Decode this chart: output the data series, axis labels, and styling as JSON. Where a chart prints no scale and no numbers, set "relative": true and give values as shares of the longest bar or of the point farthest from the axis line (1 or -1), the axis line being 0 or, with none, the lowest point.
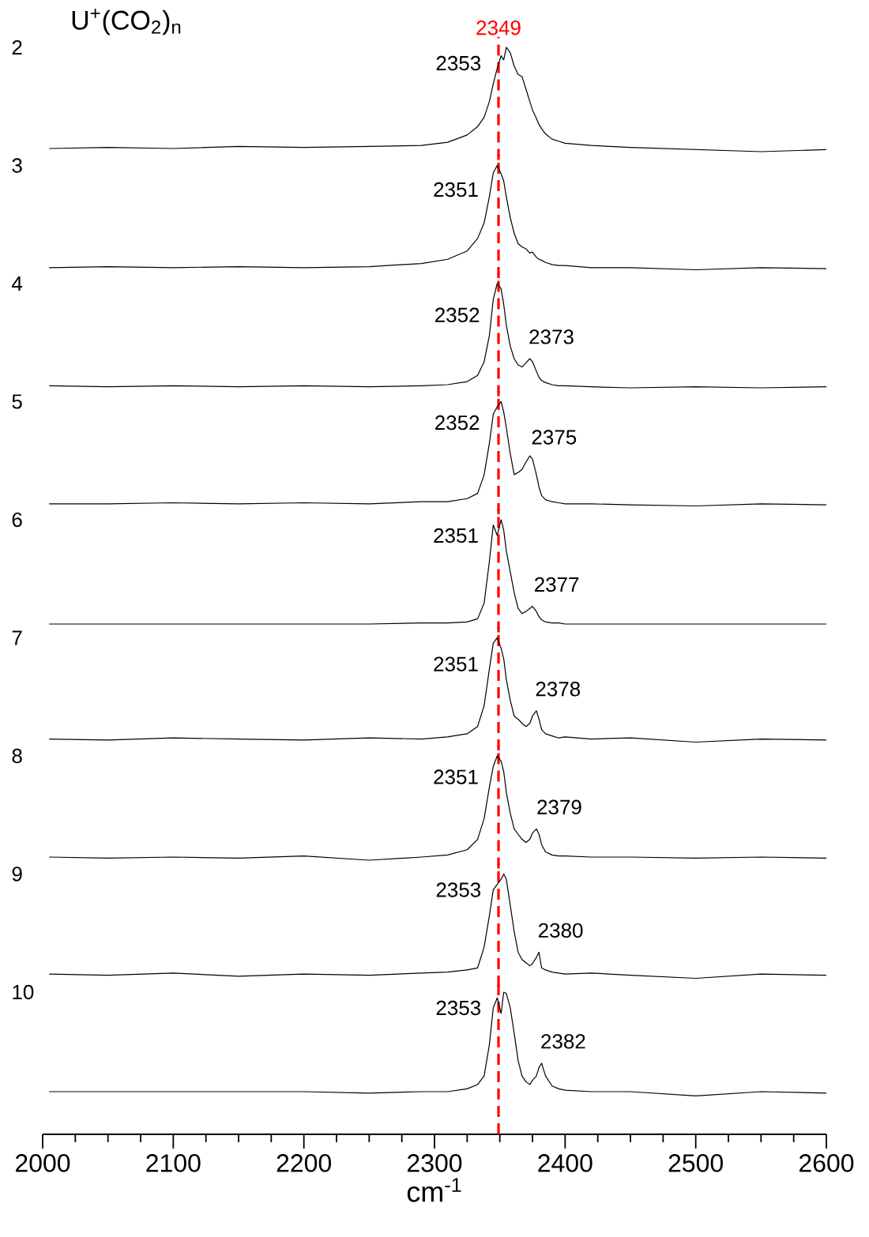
{
  "chart_data": [
    {
      "type": "line",
      "relative": true,
      "title": "U$^{+}$(CO$_{2}$)$_{n}$",
      "xlim": [
        2000,
        2600
      ],
      "tick_labels": false,
      "x": [
        2005,
        2050,
        2100,
        2150,
        2200,
        2250,
        2290,
        2310,
        2325,
        2333,
        2338,
        2342,
        2345,
        2348,
        2351,
        2353,
        2355,
        2358,
        2361,
        2364,
        2367,
        2370,
        2373,
        2375,
        2378,
        2380,
        2382,
        2385,
        2390,
        2395,
        2400,
        2420,
        2450,
        2500,
        2550,
        2600
      ],
      "series": [
        {
          "name": "2",
          "color": "#000000",
          "values": [
            0.03,
            0.04,
            0.03,
            0.05,
            0.04,
            0.05,
            0.06,
            0.09,
            0.16,
            0.24,
            0.33,
            0.48,
            0.65,
            0.8,
            0.92,
            0.88,
            1.0,
            0.95,
            0.82,
            0.74,
            0.72,
            0.6,
            0.48,
            0.4,
            0.32,
            0.26,
            0.22,
            0.17,
            0.12,
            0.1,
            0.08,
            0.06,
            0.04,
            0.02,
            0.0,
            0.02
          ]
        }
      ],
      "ref_lines": [
        {
          "axis": "x",
          "value": 2349,
          "label": "2349",
          "color": "#ff0000",
          "line_style": "dashed"
        }
      ],
      "annotations": [
        {
          "text": "2353",
          "x": 2353,
          "y": 1.0
        }
      ]
    },
    {
      "type": "line",
      "relative": true,
      "xlim": [
        2000,
        2600
      ],
      "tick_labels": false,
      "x": [
        2005,
        2050,
        2100,
        2150,
        2200,
        2250,
        2290,
        2310,
        2325,
        2333,
        2338,
        2342,
        2345,
        2348,
        2351,
        2353,
        2355,
        2358,
        2361,
        2364,
        2367,
        2370,
        2373,
        2375,
        2378,
        2380,
        2382,
        2385,
        2390,
        2395,
        2400,
        2420,
        2450,
        2500,
        2550,
        2600
      ],
      "series": [
        {
          "name": "3",
          "color": "#000000",
          "values": [
            0.02,
            0.03,
            0.02,
            0.03,
            0.02,
            0.03,
            0.06,
            0.1,
            0.18,
            0.3,
            0.45,
            0.7,
            0.93,
            1.0,
            0.92,
            0.85,
            0.7,
            0.5,
            0.35,
            0.25,
            0.22,
            0.2,
            0.16,
            0.17,
            0.12,
            0.1,
            0.09,
            0.07,
            0.05,
            0.04,
            0.04,
            0.02,
            0.02,
            0.0,
            0.02,
            0.01
          ]
        }
      ],
      "ref_lines": [
        {
          "axis": "x",
          "value": 2349,
          "color": "#ff0000",
          "line_style": "dashed"
        }
      ],
      "annotations": [
        {
          "text": "2351",
          "x": 2351,
          "y": 0.92
        }
      ]
    },
    {
      "type": "line",
      "relative": true,
      "xlim": [
        2000,
        2600
      ],
      "tick_labels": false,
      "x": [
        2005,
        2050,
        2100,
        2150,
        2200,
        2250,
        2290,
        2310,
        2325,
        2333,
        2338,
        2342,
        2345,
        2348,
        2351,
        2353,
        2355,
        2358,
        2361,
        2364,
        2367,
        2370,
        2373,
        2375,
        2378,
        2380,
        2382,
        2385,
        2390,
        2395,
        2400,
        2420,
        2450,
        2500,
        2550,
        2600
      ],
      "series": [
        {
          "name": "4",
          "color": "#000000",
          "values": [
            0.02,
            0.01,
            0.02,
            0.01,
            0.02,
            0.01,
            0.02,
            0.03,
            0.06,
            0.12,
            0.25,
            0.5,
            0.85,
            1.0,
            0.95,
            0.8,
            0.6,
            0.4,
            0.28,
            0.22,
            0.2,
            0.24,
            0.28,
            0.25,
            0.16,
            0.1,
            0.07,
            0.05,
            0.03,
            0.02,
            0.02,
            0.01,
            0.0,
            0.01,
            0.0,
            0.01
          ]
        }
      ],
      "ref_lines": [
        {
          "axis": "x",
          "value": 2349,
          "color": "#ff0000",
          "line_style": "dashed"
        }
      ],
      "annotations": [
        {
          "text": "2352",
          "x": 2352,
          "y": 0.85
        },
        {
          "text": "2373",
          "x": 2373,
          "y": 0.28
        }
      ]
    },
    {
      "type": "line",
      "relative": true,
      "xlim": [
        2000,
        2600
      ],
      "tick_labels": false,
      "x": [
        2005,
        2050,
        2100,
        2150,
        2200,
        2250,
        2290,
        2310,
        2325,
        2333,
        2338,
        2342,
        2345,
        2348,
        2351,
        2353,
        2355,
        2358,
        2361,
        2364,
        2367,
        2370,
        2373,
        2375,
        2378,
        2380,
        2382,
        2385,
        2390,
        2395,
        2400,
        2420,
        2450,
        2500,
        2550,
        2600
      ],
      "series": [
        {
          "name": "5",
          "color": "#000000",
          "values": [
            0.02,
            0.02,
            0.03,
            0.02,
            0.03,
            0.02,
            0.04,
            0.04,
            0.07,
            0.12,
            0.3,
            0.6,
            0.88,
            0.95,
            1.0,
            0.9,
            0.75,
            0.5,
            0.3,
            0.32,
            0.35,
            0.42,
            0.48,
            0.45,
            0.3,
            0.18,
            0.1,
            0.06,
            0.04,
            0.03,
            0.02,
            0.02,
            0.01,
            0.0,
            0.02,
            0.01
          ]
        }
      ],
      "ref_lines": [
        {
          "axis": "x",
          "value": 2349,
          "color": "#ff0000",
          "line_style": "dashed"
        }
      ],
      "annotations": [
        {
          "text": "2352",
          "x": 2352,
          "y": 0.95
        },
        {
          "text": "2375",
          "x": 2375,
          "y": 0.45
        }
      ]
    },
    {
      "type": "line",
      "relative": true,
      "xlim": [
        2000,
        2600
      ],
      "tick_labels": false,
      "x": [
        2005,
        2050,
        2100,
        2150,
        2200,
        2250,
        2290,
        2310,
        2325,
        2333,
        2338,
        2342,
        2345,
        2348,
        2351,
        2353,
        2355,
        2358,
        2361,
        2364,
        2367,
        2370,
        2373,
        2375,
        2378,
        2380,
        2382,
        2385,
        2390,
        2395,
        2400,
        2420,
        2450,
        2500,
        2550,
        2600
      ],
      "series": [
        {
          "name": "6",
          "color": "#000000",
          "values": [
            0,
            0,
            0,
            0,
            0,
            0,
            0.01,
            0.01,
            0.02,
            0.05,
            0.2,
            0.6,
            0.95,
            0.85,
            1.0,
            0.9,
            0.7,
            0.5,
            0.3,
            0.15,
            0.1,
            0.12,
            0.15,
            0.17,
            0.12,
            0.07,
            0.04,
            0.02,
            0.01,
            0.01,
            0,
            0,
            0,
            0,
            0,
            0
          ]
        }
      ],
      "ref_lines": [
        {
          "axis": "x",
          "value": 2349,
          "color": "#ff0000",
          "line_style": "dashed"
        }
      ],
      "annotations": [
        {
          "text": "2351",
          "x": 2351,
          "y": 1.0
        },
        {
          "text": "2377",
          "x": 2377,
          "y": 0.17
        }
      ]
    },
    {
      "type": "line",
      "relative": true,
      "xlim": [
        2000,
        2600
      ],
      "tick_labels": false,
      "x": [
        2005,
        2050,
        2100,
        2150,
        2200,
        2250,
        2290,
        2310,
        2325,
        2333,
        2338,
        2342,
        2345,
        2348,
        2351,
        2353,
        2355,
        2358,
        2361,
        2364,
        2367,
        2370,
        2373,
        2375,
        2378,
        2380,
        2382,
        2385,
        2390,
        2395,
        2400,
        2420,
        2450,
        2500,
        2550,
        2600
      ],
      "series": [
        {
          "name": "7",
          "color": "#000000",
          "values": [
            0.03,
            0.02,
            0.04,
            0.03,
            0.02,
            0.04,
            0.03,
            0.05,
            0.08,
            0.15,
            0.35,
            0.7,
            0.95,
            1.0,
            0.9,
            0.8,
            0.6,
            0.4,
            0.25,
            0.22,
            0.18,
            0.15,
            0.18,
            0.25,
            0.3,
            0.22,
            0.12,
            0.08,
            0.06,
            0.04,
            0.05,
            0.03,
            0.04,
            0.0,
            0.03,
            0.02
          ]
        }
      ],
      "ref_lines": [
        {
          "axis": "x",
          "value": 2349,
          "color": "#ff0000",
          "line_style": "dashed"
        }
      ],
      "annotations": [
        {
          "text": "2351",
          "x": 2351,
          "y": 0.9
        },
        {
          "text": "2378",
          "x": 2378,
          "y": 0.3
        }
      ]
    },
    {
      "type": "line",
      "relative": true,
      "xlim": [
        2000,
        2600
      ],
      "tick_labels": false,
      "x": [
        2005,
        2050,
        2100,
        2150,
        2200,
        2250,
        2290,
        2310,
        2325,
        2333,
        2338,
        2342,
        2345,
        2348,
        2351,
        2353,
        2355,
        2358,
        2361,
        2364,
        2367,
        2370,
        2373,
        2375,
        2378,
        2380,
        2382,
        2385,
        2390,
        2395,
        2400,
        2420,
        2450,
        2500,
        2550,
        2600
      ],
      "series": [
        {
          "name": "8",
          "color": "#000000",
          "values": [
            0.03,
            0.02,
            0.03,
            0.02,
            0.04,
            0.0,
            0.03,
            0.05,
            0.1,
            0.2,
            0.4,
            0.7,
            0.9,
            1.0,
            0.95,
            0.85,
            0.65,
            0.45,
            0.3,
            0.25,
            0.2,
            0.17,
            0.2,
            0.26,
            0.3,
            0.25,
            0.15,
            0.08,
            0.05,
            0.04,
            0.04,
            0.03,
            0.03,
            0.02,
            0.03,
            0.02
          ]
        }
      ],
      "ref_lines": [
        {
          "axis": "x",
          "value": 2349,
          "color": "#ff0000",
          "line_style": "dashed"
        }
      ],
      "annotations": [
        {
          "text": "2351",
          "x": 2351,
          "y": 0.95
        },
        {
          "text": "2379",
          "x": 2379,
          "y": 0.3
        }
      ]
    },
    {
      "type": "line",
      "relative": true,
      "xlim": [
        2000,
        2600
      ],
      "tick_labels": false,
      "x": [
        2005,
        2050,
        2100,
        2150,
        2200,
        2250,
        2290,
        2310,
        2325,
        2333,
        2338,
        2342,
        2345,
        2348,
        2351,
        2353,
        2355,
        2358,
        2361,
        2364,
        2367,
        2370,
        2373,
        2375,
        2378,
        2380,
        2382,
        2385,
        2390,
        2395,
        2400,
        2420,
        2450,
        2500,
        2550,
        2600
      ],
      "series": [
        {
          "name": "9",
          "color": "#000000",
          "values": [
            0.04,
            0.03,
            0.05,
            0.02,
            0.04,
            0.03,
            0.05,
            0.06,
            0.08,
            0.1,
            0.3,
            0.6,
            0.85,
            0.9,
            0.95,
            1.0,
            0.95,
            0.7,
            0.45,
            0.25,
            0.18,
            0.15,
            0.12,
            0.14,
            0.2,
            0.25,
            0.1,
            0.08,
            0.06,
            0.05,
            0.04,
            0.05,
            0.03,
            0.0,
            0.04,
            0.03
          ]
        }
      ],
      "ref_lines": [
        {
          "axis": "x",
          "value": 2349,
          "color": "#ff0000",
          "line_style": "dashed"
        }
      ],
      "annotations": [
        {
          "text": "2353",
          "x": 2353,
          "y": 1.0
        },
        {
          "text": "2380",
          "x": 2380,
          "y": 0.25
        }
      ]
    },
    {
      "type": "line",
      "relative": true,
      "xlim": [
        2000,
        2600
      ],
      "tick_labels": "x",
      "xlabel": "cm$^{-1}$",
      "xticks": [
        2000,
        2100,
        2200,
        2300,
        2400,
        2500,
        2600
      ],
      "x": [
        2005,
        2050,
        2100,
        2150,
        2200,
        2250,
        2290,
        2310,
        2325,
        2333,
        2338,
        2342,
        2345,
        2348,
        2351,
        2353,
        2355,
        2358,
        2361,
        2364,
        2367,
        2370,
        2373,
        2375,
        2378,
        2380,
        2382,
        2385,
        2390,
        2395,
        2400,
        2420,
        2450,
        2500,
        2550,
        2600
      ],
      "series": [
        {
          "name": "10",
          "color": "#000000",
          "values": [
            0.3,
            0.3,
            0.3,
            0.3,
            0.3,
            0.29,
            0.3,
            0.3,
            0.32,
            0.35,
            0.41,
            0.63,
            0.89,
            0.96,
            0.85,
            1.0,
            0.99,
            0.89,
            0.71,
            0.52,
            0.41,
            0.37,
            0.35,
            0.38,
            0.41,
            0.47,
            0.5,
            0.41,
            0.34,
            0.32,
            0.31,
            0.3,
            0.3,
            0.27,
            0.3,
            0.29
          ]
        }
      ],
      "ref_lines": [
        {
          "axis": "x",
          "value": 2349,
          "color": "#ff0000",
          "line_style": "dashed"
        }
      ],
      "annotations": [
        {
          "text": "2353",
          "x": 2353,
          "y": 1.0
        },
        {
          "text": "2382",
          "x": 2382,
          "y": 0.5
        }
      ]
    }
  ]
}
